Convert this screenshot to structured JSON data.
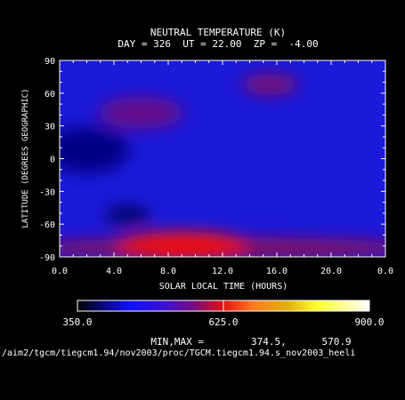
{
  "chart_data": {
    "type": "heatmap",
    "title": "NEUTRAL TEMPERATURE (K)",
    "subtitle": "DAY = 326  UT = 22.00  ZP =  -4.00",
    "xlabel": "SOLAR LOCAL TIME (HOURS)",
    "ylabel": "LATITUDE (DEGREES GEOGRAPHIC)",
    "xlim": [
      0,
      24
    ],
    "ylim": [
      -90,
      90
    ],
    "x_ticks": [
      "0.0",
      "4.0",
      "8.0",
      "12.0",
      "16.0",
      "20.0",
      "0.0"
    ],
    "y_ticks": [
      "90",
      "60",
      "30",
      "0",
      "-30",
      "-60",
      "-90"
    ],
    "colorbar": {
      "min": 350.0,
      "mid": 625.0,
      "max": 900.0,
      "labels": [
        "350.0",
        "625.0",
        "900.0"
      ]
    },
    "features": [
      {
        "x": 9.0,
        "y": -80,
        "value": 571,
        "label": "max"
      },
      {
        "x": 15.5,
        "y": 68,
        "value": 460
      },
      {
        "x": 6.0,
        "y": 42,
        "value": 450
      },
      {
        "x": 5.0,
        "y": -52,
        "value": 375,
        "label": "min"
      },
      {
        "x": 2.0,
        "y": 8,
        "value": 385
      }
    ],
    "background_value": 405,
    "min_max_text": "MIN,MAX =        374.5,      570.9",
    "min_max": [
      374.5,
      570.9
    ],
    "footer_path": "/aim2/tgcm/tiegcm1.94/nov2003/proc/TGCM.tiegcm1.94.s_nov2003_heeli"
  }
}
